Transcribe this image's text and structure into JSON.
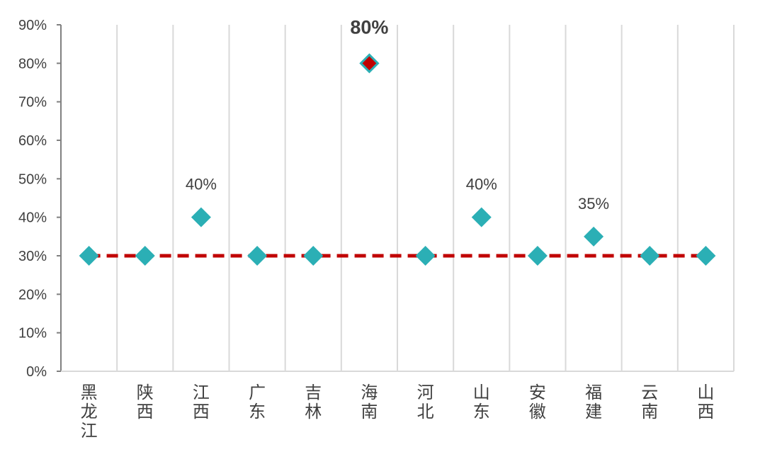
{
  "chart_data": {
    "type": "scatter",
    "categories": [
      [
        "黑",
        "龙",
        "江"
      ],
      [
        "陕",
        "西"
      ],
      [
        "江",
        "西"
      ],
      [
        "广",
        "东"
      ],
      [
        "吉",
        "林"
      ],
      [
        "海",
        "南"
      ],
      [
        "河",
        "北"
      ],
      [
        "山",
        "东"
      ],
      [
        "安",
        "徽"
      ],
      [
        "福",
        "建"
      ],
      [
        "云",
        "南"
      ],
      [
        "山",
        "西"
      ]
    ],
    "values": [
      30,
      30,
      40,
      30,
      30,
      80,
      30,
      40,
      30,
      35,
      30,
      30
    ],
    "data_labels": [
      "",
      "",
      "40%",
      "",
      "",
      "80%",
      "",
      "40%",
      "",
      "35%",
      "",
      ""
    ],
    "highlight_index": 5,
    "reference_line": 30,
    "ylim": [
      0,
      90
    ],
    "yticks": [
      "0%",
      "10%",
      "20%",
      "30%",
      "40%",
      "50%",
      "60%",
      "70%",
      "80%",
      "90%"
    ],
    "grid": "vertical",
    "colors": {
      "marker": "#2BAFB5",
      "highlight_fill": "#C00000",
      "highlight_stroke": "#2BAFB5",
      "reference_line": "#C00000",
      "grid": "#D9D9D9",
      "axis": "#808080",
      "highlight_label": "#C00000"
    }
  }
}
